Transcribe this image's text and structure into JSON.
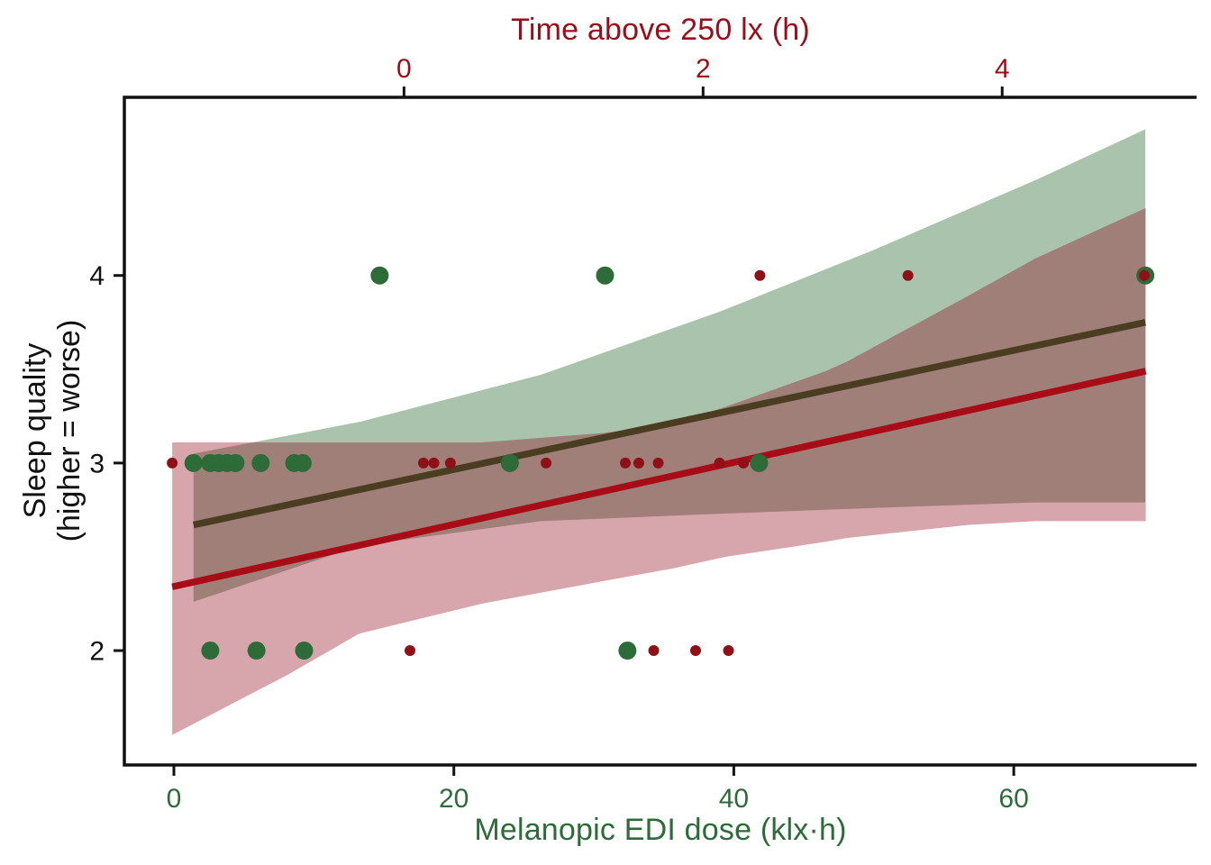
{
  "chart_data": {
    "type": "scatter",
    "background": "#ffffff",
    "spine_color": "#111111",
    "axes": {
      "bottom": {
        "label": "Melanopic EDI dose (klx·h)",
        "color": "#2d6b39",
        "range": [
          -3.54,
          73.06
        ],
        "ticks": [
          {
            "v": 0,
            "label": "0"
          },
          {
            "v": 20,
            "label": "20"
          },
          {
            "v": 40,
            "label": "40"
          },
          {
            "v": 60,
            "label": "60"
          }
        ]
      },
      "top": {
        "label": "Time above 250 lx (h)",
        "color": "#9a0d19",
        "range": [
          -1.87,
          5.3
        ],
        "ticks": [
          {
            "v": 0,
            "label": "0"
          },
          {
            "v": 2,
            "label": "2"
          },
          {
            "v": 4,
            "label": "4"
          }
        ]
      },
      "y": {
        "label": [
          "Sleep quality",
          "(higher = worse)"
        ],
        "color": "#111111",
        "range": [
          1.39,
          4.95
        ],
        "ticks": [
          {
            "v": 2,
            "label": "2"
          },
          {
            "v": 3,
            "label": "3"
          },
          {
            "v": 4,
            "label": "4"
          }
        ]
      }
    },
    "series": [
      {
        "name": "melanopic-edi-dose",
        "x_axis": "bottom",
        "marker": {
          "color": "#2d6b39",
          "radius": 10
        },
        "points": [
          [
            1.4,
            3
          ],
          [
            2.6,
            3
          ],
          [
            3.2,
            3
          ],
          [
            3.8,
            3
          ],
          [
            4.4,
            3
          ],
          [
            6.2,
            3
          ],
          [
            8.6,
            3
          ],
          [
            9.2,
            3
          ],
          [
            24.0,
            3
          ],
          [
            41.8,
            3
          ],
          [
            2.6,
            2
          ],
          [
            5.9,
            2
          ],
          [
            9.3,
            2
          ],
          [
            32.4,
            2
          ],
          [
            14.7,
            4
          ],
          [
            30.8,
            4
          ],
          [
            69.4,
            4
          ]
        ],
        "regression_line": {
          "color": "#4b3d22",
          "width": 7.5,
          "x": [
            1.4,
            69.4
          ],
          "y": [
            2.67,
            3.75
          ]
        },
        "ci_band": {
          "color": "rgba(45,110,57,0.41)",
          "x": [
            1.4,
            13.3,
            26.2,
            39.1,
            49.8,
            61.6,
            69.4
          ],
          "top": [
            3.05,
            3.22,
            3.47,
            3.81,
            4.13,
            4.51,
            4.78
          ],
          "bottom": [
            2.26,
            2.56,
            2.69,
            2.73,
            2.76,
            2.79,
            2.79
          ]
        }
      },
      {
        "name": "time-above-250lx",
        "x_axis": "top",
        "marker": {
          "color": "#8f1016",
          "radius": 6
        },
        "points": [
          [
            -1.55,
            3
          ],
          [
            0.13,
            3
          ],
          [
            0.2,
            3
          ],
          [
            0.31,
            3
          ],
          [
            0.95,
            3
          ],
          [
            1.48,
            3
          ],
          [
            1.57,
            3
          ],
          [
            1.7,
            3
          ],
          [
            2.11,
            3
          ],
          [
            2.27,
            3
          ],
          [
            0.04,
            2
          ],
          [
            1.67,
            2
          ],
          [
            1.95,
            2
          ],
          [
            2.17,
            2
          ],
          [
            2.38,
            4
          ],
          [
            3.37,
            4
          ],
          [
            4.95,
            4
          ]
        ],
        "regression_line": {
          "color": "#a80c16",
          "width": 7.5,
          "x": [
            -1.55,
            4.96
          ],
          "y": [
            2.34,
            3.49
          ]
        },
        "ci_band": {
          "color": "rgba(139,0,20,0.35)",
          "x": [
            -1.55,
            -0.78,
            -0.3,
            0.52,
            1.33,
            1.81,
            2.15,
            2.82,
            2.96,
            3.77,
            4.22,
            4.96
          ],
          "top": [
            3.11,
            3.11,
            3.11,
            3.11,
            3.16,
            3.21,
            3.3,
            3.49,
            3.54,
            3.89,
            4.09,
            4.36
          ],
          "bottom": [
            1.55,
            1.87,
            2.09,
            2.25,
            2.37,
            2.44,
            2.5,
            2.58,
            2.6,
            2.67,
            2.69,
            2.69
          ]
        }
      }
    ]
  }
}
